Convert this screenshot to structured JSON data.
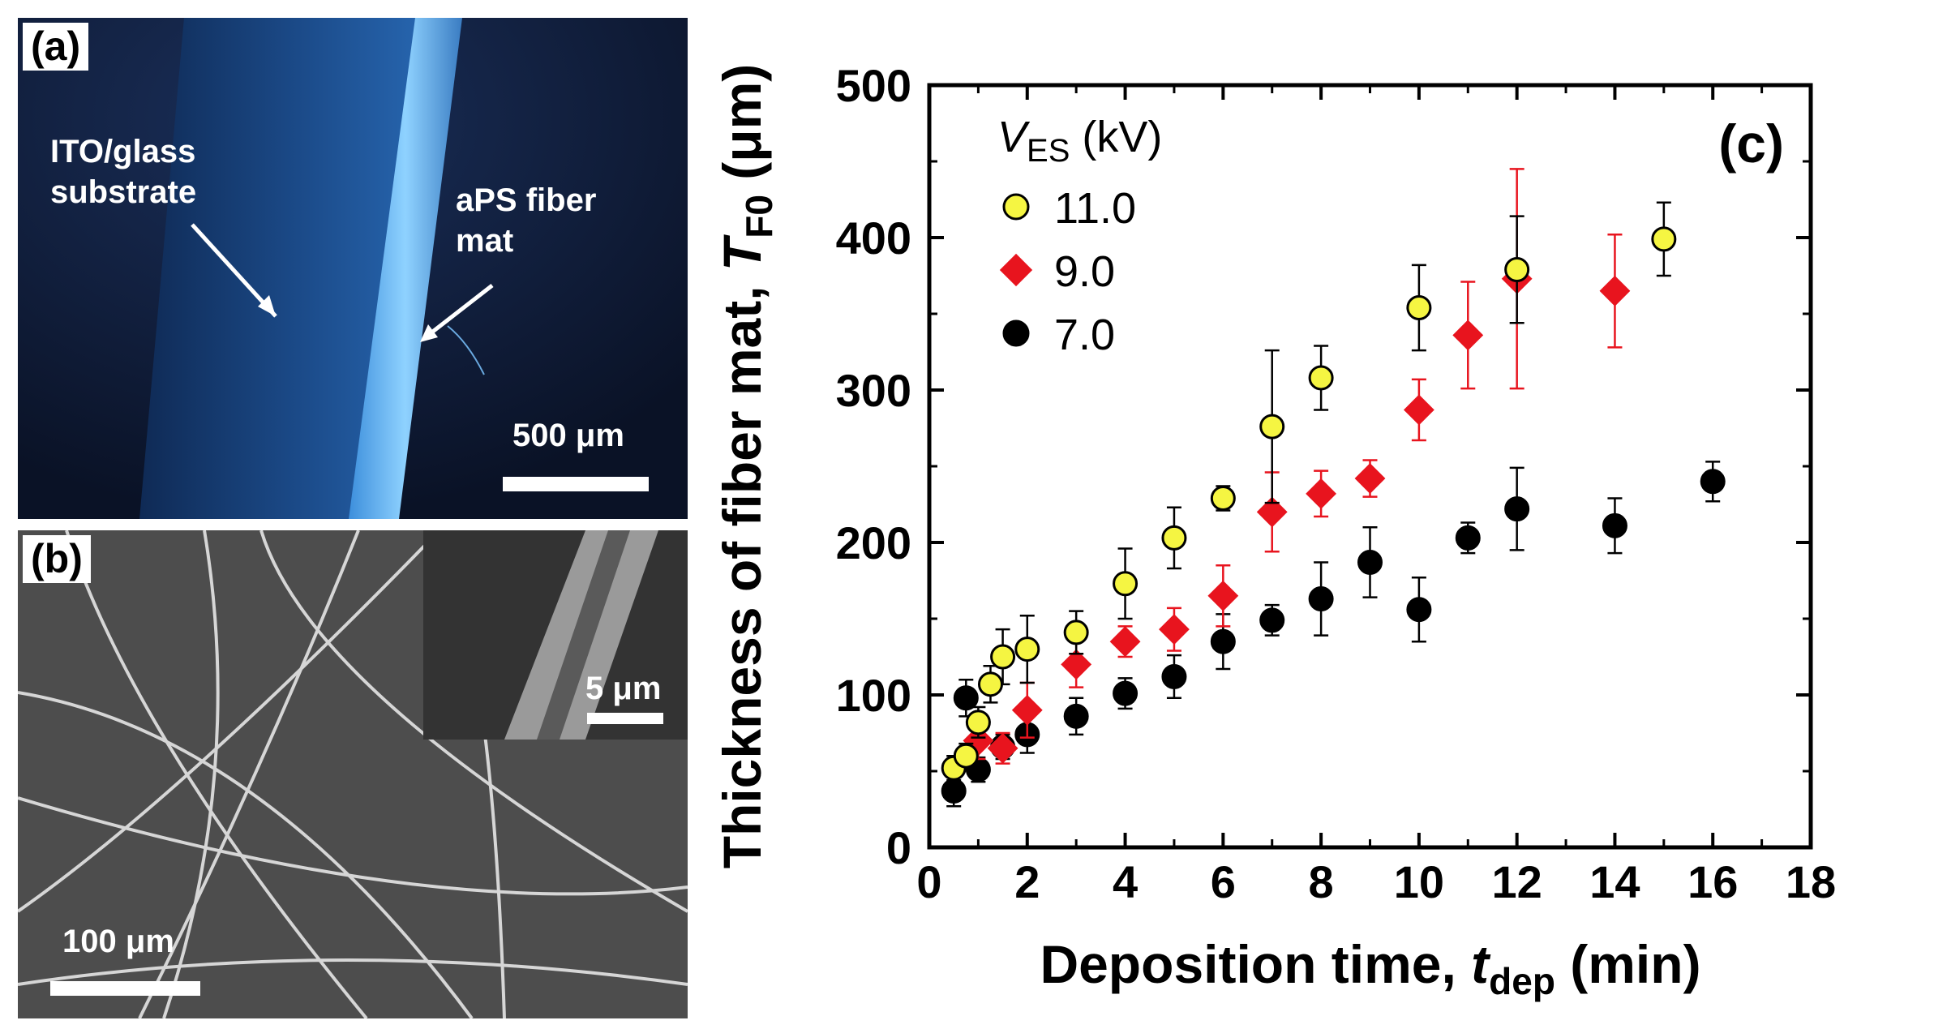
{
  "panel_a": {
    "label": "(a)",
    "substrate_label_line1": "ITO/glass",
    "substrate_label_line2": "substrate",
    "fiber_label_line1": "aPS fiber",
    "fiber_label_line2": "mat",
    "scale_bar": "500 μm",
    "colors": {
      "background": "#0b1530",
      "band": "#1c4a86",
      "edge": "#5fb0f0"
    }
  },
  "panel_b": {
    "label": "(b)",
    "scale_bar": "100 μm",
    "inset_scale_bar": "5 μm",
    "colors": {
      "background": "#4a4a4a",
      "fiber": "#d8d8d8"
    }
  },
  "chart_data": {
    "type": "scatter",
    "panel_label": "(c)",
    "xlabel": "Deposition time, ",
    "xlabel_var": "t",
    "xlabel_sub": "dep",
    "xlabel_unit": " (min)",
    "ylabel": "Thickness of fiber mat, ",
    "ylabel_var": "T",
    "ylabel_sub": "F0",
    "ylabel_unit": " (μm)",
    "xlim": [
      0,
      18
    ],
    "ylim": [
      0,
      500
    ],
    "xticks": [
      "0",
      "2",
      "4",
      "6",
      "8",
      "10",
      "12",
      "14",
      "16",
      "18"
    ],
    "yticks": [
      "0",
      "100",
      "200",
      "300",
      "400",
      "500"
    ],
    "legend_title_var": "V",
    "legend_title_sub": "ES",
    "legend_title_unit": " (kV)",
    "series": [
      {
        "name": "11.0",
        "marker": "circle",
        "color": "#f5f542",
        "edge": "#000000",
        "points": [
          {
            "x": 0.5,
            "y": 52,
            "err": 8
          },
          {
            "x": 0.75,
            "y": 60,
            "err": 8
          },
          {
            "x": 1,
            "y": 82,
            "err": 10
          },
          {
            "x": 1.25,
            "y": 107,
            "err": 12
          },
          {
            "x": 1.5,
            "y": 125,
            "err": 18
          },
          {
            "x": 2,
            "y": 130,
            "err": 22
          },
          {
            "x": 3,
            "y": 141,
            "err": 14
          },
          {
            "x": 4,
            "y": 173,
            "err": 23
          },
          {
            "x": 5,
            "y": 203,
            "err": 20
          },
          {
            "x": 6,
            "y": 229,
            "err": 8
          },
          {
            "x": 7,
            "y": 276,
            "err": 50
          },
          {
            "x": 8,
            "y": 308,
            "err": 21
          },
          {
            "x": 10,
            "y": 354,
            "err": 28
          },
          {
            "x": 12,
            "y": 379,
            "err": 35
          },
          {
            "x": 15,
            "y": 399,
            "err": 24
          }
        ]
      },
      {
        "name": "9.0",
        "marker": "diamond",
        "color": "#e8141e",
        "edge": "#e8141e",
        "points": [
          {
            "x": 1,
            "y": 70,
            "err": 12
          },
          {
            "x": 1.5,
            "y": 65,
            "err": 10
          },
          {
            "x": 2,
            "y": 90,
            "err": 18
          },
          {
            "x": 3,
            "y": 120,
            "err": 15
          },
          {
            "x": 4,
            "y": 135,
            "err": 10
          },
          {
            "x": 5,
            "y": 143,
            "err": 14
          },
          {
            "x": 6,
            "y": 165,
            "err": 20
          },
          {
            "x": 7,
            "y": 220,
            "err": 26
          },
          {
            "x": 8,
            "y": 232,
            "err": 15
          },
          {
            "x": 9,
            "y": 242,
            "err": 12
          },
          {
            "x": 10,
            "y": 287,
            "err": 20
          },
          {
            "x": 11,
            "y": 336,
            "err": 35
          },
          {
            "x": 12,
            "y": 373,
            "err": 72
          },
          {
            "x": 14,
            "y": 365,
            "err": 37
          }
        ]
      },
      {
        "name": "7.0",
        "marker": "circle",
        "color": "#000000",
        "edge": "#000000",
        "points": [
          {
            "x": 0.5,
            "y": 37,
            "err": 10
          },
          {
            "x": 0.75,
            "y": 98,
            "err": 12
          },
          {
            "x": 1,
            "y": 51,
            "err": 8
          },
          {
            "x": 1.5,
            "y": 66,
            "err": 8
          },
          {
            "x": 2,
            "y": 74,
            "err": 12
          },
          {
            "x": 3,
            "y": 86,
            "err": 12
          },
          {
            "x": 4,
            "y": 101,
            "err": 10
          },
          {
            "x": 5,
            "y": 112,
            "err": 14
          },
          {
            "x": 6,
            "y": 135,
            "err": 18
          },
          {
            "x": 7,
            "y": 149,
            "err": 10
          },
          {
            "x": 8,
            "y": 163,
            "err": 24
          },
          {
            "x": 9,
            "y": 187,
            "err": 23
          },
          {
            "x": 10,
            "y": 156,
            "err": 21
          },
          {
            "x": 11,
            "y": 203,
            "err": 10
          },
          {
            "x": 12,
            "y": 222,
            "err": 27
          },
          {
            "x": 14,
            "y": 211,
            "err": 18
          },
          {
            "x": 16,
            "y": 240,
            "err": 13
          }
        ]
      }
    ]
  }
}
